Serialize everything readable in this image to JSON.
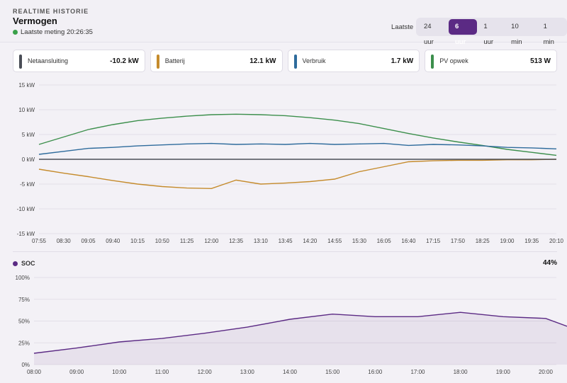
{
  "header": {
    "section_label": "REALTIME HISTORIE",
    "title": "Vermogen",
    "status_text": "Laatste meting 20:26:35"
  },
  "range": {
    "label": "Laatste",
    "options": [
      "24 uur",
      "6 uur",
      "1 uur",
      "10 min",
      "1 min"
    ],
    "selected": "6 uur"
  },
  "cards": [
    {
      "label": "Netaansluiting",
      "value": "-10.2 kW",
      "color": "#4a4e57"
    },
    {
      "label": "Batterij",
      "value": "12.1 kW",
      "color": "#c58b2c"
    },
    {
      "label": "Verbruik",
      "value": "1.7 kW",
      "color": "#2e6b9c"
    },
    {
      "label": "PV opwek",
      "value": "513 W",
      "color": "#3c8f4c"
    }
  ],
  "chart_data": [
    {
      "type": "line",
      "y_ticks": [
        "15 kW",
        "10 kW",
        "5 kW",
        "0 kW",
        "-5 kW",
        "-10 kW",
        "-15 kW"
      ],
      "ylim": [
        -15,
        15
      ],
      "x_ticks": [
        "07:55",
        "08:30",
        "09:05",
        "09:40",
        "10:15",
        "10:50",
        "11:25",
        "12:00",
        "12:35",
        "13:10",
        "13:45",
        "14:20",
        "14:55",
        "15:30",
        "16:05",
        "16:40",
        "17:15",
        "17:50",
        "18:25",
        "19:00",
        "19:35",
        "20:10"
      ],
      "grid": true,
      "series": [
        {
          "name": "PV opwek",
          "color": "#3c8f4c",
          "values": [
            [
              0,
              3
            ],
            [
              1,
              4.5
            ],
            [
              2,
              6
            ],
            [
              3,
              7
            ],
            [
              4,
              7.8
            ],
            [
              5,
              8.3
            ],
            [
              6,
              8.7
            ],
            [
              7,
              9
            ],
            [
              8,
              9.1
            ],
            [
              9,
              9
            ],
            [
              10,
              8.8
            ],
            [
              11,
              8.4
            ],
            [
              12,
              7.9
            ],
            [
              13,
              7.2
            ],
            [
              14,
              6.2
            ],
            [
              15,
              5.2
            ],
            [
              16,
              4.3
            ],
            [
              17,
              3.5
            ],
            [
              18,
              2.8
            ],
            [
              19,
              2
            ],
            [
              20,
              1.4
            ],
            [
              21,
              0.8
            ]
          ]
        },
        {
          "name": "Verbruik",
          "color": "#2e6b9c",
          "values": [
            [
              0,
              1
            ],
            [
              1,
              1.6
            ],
            [
              2,
              2.2
            ],
            [
              3,
              2.4
            ],
            [
              4,
              2.7
            ],
            [
              5,
              2.9
            ],
            [
              6,
              3.1
            ],
            [
              7,
              3.2
            ],
            [
              8,
              3
            ],
            [
              9,
              3.1
            ],
            [
              10,
              3
            ],
            [
              11,
              3.2
            ],
            [
              12,
              3
            ],
            [
              13,
              3.1
            ],
            [
              14,
              3.2
            ],
            [
              15,
              2.8
            ],
            [
              16,
              3
            ],
            [
              17,
              2.9
            ],
            [
              18,
              2.7
            ],
            [
              19,
              2.4
            ],
            [
              20,
              2.3
            ],
            [
              21,
              2.1
            ]
          ]
        },
        {
          "name": "Batterij",
          "color": "#c58b2c",
          "values": [
            [
              0,
              -2
            ],
            [
              1,
              -2.8
            ],
            [
              2,
              -3.5
            ],
            [
              3,
              -4.3
            ],
            [
              4,
              -5
            ],
            [
              5,
              -5.5
            ],
            [
              6,
              -5.8
            ],
            [
              7,
              -5.9
            ],
            [
              8,
              -4.2
            ],
            [
              9,
              -5
            ],
            [
              10,
              -4.8
            ],
            [
              11,
              -4.5
            ],
            [
              12,
              -4
            ],
            [
              13,
              -2.5
            ],
            [
              14,
              -1.5
            ],
            [
              15,
              -0.5
            ],
            [
              16,
              -0.3
            ],
            [
              17,
              -0.2
            ],
            [
              18,
              -0.2
            ],
            [
              19,
              -0.1
            ],
            [
              20,
              -0.1
            ],
            [
              21,
              0
            ]
          ]
        },
        {
          "name": "Netaansluiting",
          "color": "#4a4e57",
          "values": [
            [
              0,
              0
            ],
            [
              1,
              0
            ],
            [
              2,
              0
            ],
            [
              3,
              0
            ],
            [
              4,
              0
            ],
            [
              5,
              0
            ],
            [
              6,
              0
            ],
            [
              7,
              0
            ],
            [
              8,
              0
            ],
            [
              9,
              0
            ],
            [
              10,
              0
            ],
            [
              11,
              0
            ],
            [
              12,
              0
            ],
            [
              13,
              0
            ],
            [
              14,
              0
            ],
            [
              15,
              0
            ],
            [
              16,
              0
            ],
            [
              17,
              0
            ],
            [
              18,
              0
            ],
            [
              19,
              0
            ],
            [
              20,
              0
            ],
            [
              21,
              0
            ]
          ]
        }
      ]
    },
    {
      "type": "area",
      "legend": "SOC",
      "current": "44%",
      "y_ticks": [
        "100%",
        "75%",
        "50%",
        "25%",
        "0%"
      ],
      "ylim": [
        0,
        100
      ],
      "x_ticks": [
        "08:00",
        "09:00",
        "10:00",
        "11:00",
        "12:00",
        "13:00",
        "14:00",
        "15:00",
        "16:00",
        "17:00",
        "18:00",
        "19:00",
        "20:00"
      ],
      "grid": true,
      "color": "#5b2a84",
      "values": [
        [
          0,
          13
        ],
        [
          1,
          19
        ],
        [
          2,
          26
        ],
        [
          3,
          30
        ],
        [
          4,
          36
        ],
        [
          5,
          43
        ],
        [
          6,
          52
        ],
        [
          7,
          58
        ],
        [
          8,
          55
        ],
        [
          9,
          55
        ],
        [
          10,
          60
        ],
        [
          11,
          55
        ],
        [
          12,
          53
        ],
        [
          12.5,
          44
        ]
      ]
    }
  ]
}
